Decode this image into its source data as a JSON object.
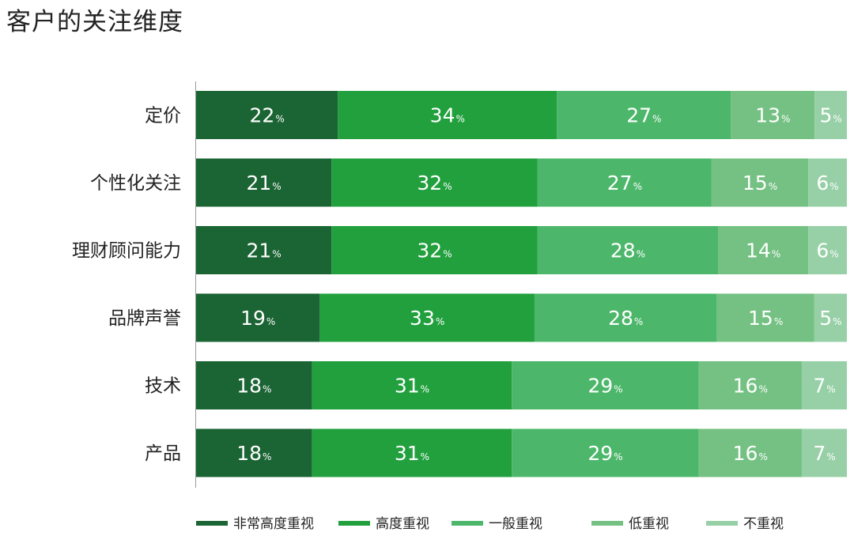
{
  "chart_data": {
    "type": "bar",
    "orientation": "horizontal",
    "stacked": true,
    "title": "客户的关注维度",
    "categories": [
      "定价",
      "个性化关注",
      "理财顾问能力",
      "品牌声誉",
      "技术",
      "产品"
    ],
    "series": [
      {
        "name": "非常高度重视",
        "color": "#1b6434",
        "values": [
          22,
          21,
          21,
          19,
          18,
          18
        ]
      },
      {
        "name": "高度重视",
        "color": "#22a03e",
        "values": [
          34,
          32,
          32,
          33,
          31,
          31
        ]
      },
      {
        "name": "一般重视",
        "color": "#4cb76a",
        "values": [
          27,
          27,
          28,
          28,
          29,
          29
        ]
      },
      {
        "name": "低重视",
        "color": "#74c183",
        "values": [
          13,
          15,
          14,
          15,
          16,
          16
        ]
      },
      {
        "name": "不重视",
        "color": "#97d0a6",
        "values": [
          5,
          6,
          6,
          5,
          7,
          7
        ]
      }
    ],
    "value_suffix": "%",
    "legend_position": "bottom"
  }
}
